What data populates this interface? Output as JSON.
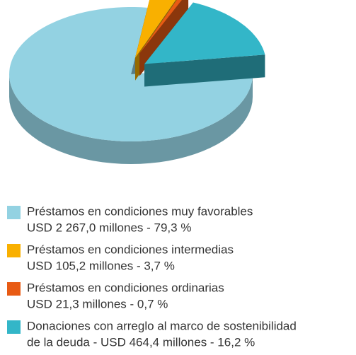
{
  "chart_data": {
    "type": "pie",
    "categories": [
      "Préstamos en condiciones muy favorables",
      "Préstamos en condiciones intermedias",
      "Préstamos en condiciones ordinarias",
      "Donaciones con arreglo al marco de sostenibilidad"
    ],
    "values": [
      79.3,
      3.7,
      0.7,
      16.2
    ],
    "value_labels": [
      "USD 2 267,0 millones - 79,3 %",
      "USD 105,2 millones - 3,7 %",
      "USD 21,3 millones - 0,7 %",
      "de la deuda - USD 464,4 millones - 16,2 %"
    ],
    "colors": [
      "#93d2e2",
      "#f9b000",
      "#e85b14",
      "#33b6c8"
    ]
  }
}
